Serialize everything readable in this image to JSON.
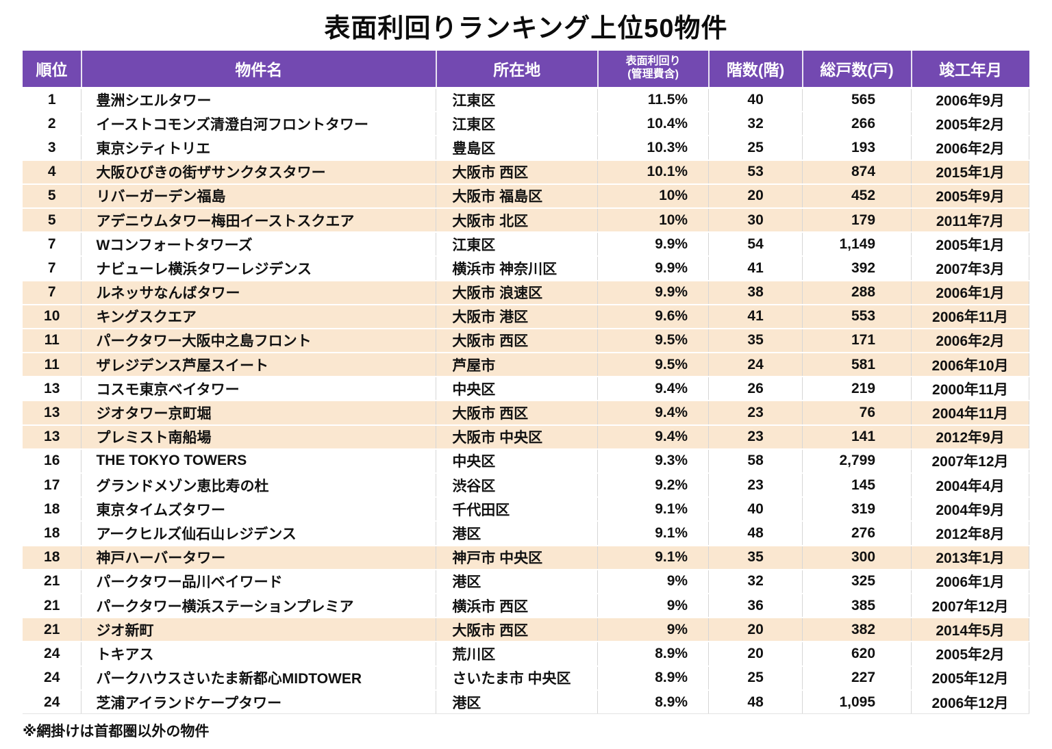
{
  "title": "表面利回りランキング上位50物件",
  "note": "※網掛けは首都圏以外の物件",
  "colors": {
    "header_bg": "#7349B1",
    "header_text": "#FFFFFF",
    "shaded_row_bg": "#FAE7D0",
    "grid_line": "#D6D6D6",
    "body_text": "#111111"
  },
  "table": {
    "headers": {
      "rank": "順位",
      "name": "物件名",
      "location": "所在地",
      "yield_line1": "表面利回り",
      "yield_line2": "(管理費含)",
      "floors": "階数(階)",
      "units": "総戸数(戸)",
      "completed": "竣工年月"
    },
    "rows": [
      {
        "rank": "1",
        "name": "豊洲シエルタワー",
        "location": "江東区",
        "yield": "11.5%",
        "floors": "40",
        "units": "565",
        "completed": "2006年9月",
        "shaded": false
      },
      {
        "rank": "2",
        "name": "イーストコモンズ清澄白河フロントタワー",
        "location": "江東区",
        "yield": "10.4%",
        "floors": "32",
        "units": "266",
        "completed": "2005年2月",
        "shaded": false
      },
      {
        "rank": "3",
        "name": "東京シティトリエ",
        "location": "豊島区",
        "yield": "10.3%",
        "floors": "25",
        "units": "193",
        "completed": "2006年2月",
        "shaded": false
      },
      {
        "rank": "4",
        "name": "大阪ひびきの街ザサンクタスタワー",
        "location": "大阪市 西区",
        "yield": "10.1%",
        "floors": "53",
        "units": "874",
        "completed": "2015年1月",
        "shaded": true
      },
      {
        "rank": "5",
        "name": "リバーガーデン福島",
        "location": "大阪市 福島区",
        "yield": "10%",
        "floors": "20",
        "units": "452",
        "completed": "2005年9月",
        "shaded": true
      },
      {
        "rank": "5",
        "name": "アデニウムタワー梅田イーストスクエア",
        "location": "大阪市 北区",
        "yield": "10%",
        "floors": "30",
        "units": "179",
        "completed": "2011年7月",
        "shaded": true
      },
      {
        "rank": "7",
        "name": "Wコンフォートタワーズ",
        "location": "江東区",
        "yield": "9.9%",
        "floors": "54",
        "units": "1,149",
        "completed": "2005年1月",
        "shaded": false
      },
      {
        "rank": "7",
        "name": "ナビューレ横浜タワーレジデンス",
        "location": "横浜市 神奈川区",
        "yield": "9.9%",
        "floors": "41",
        "units": "392",
        "completed": "2007年3月",
        "shaded": false
      },
      {
        "rank": "7",
        "name": "ルネッサなんばタワー",
        "location": "大阪市 浪速区",
        "yield": "9.9%",
        "floors": "38",
        "units": "288",
        "completed": "2006年1月",
        "shaded": true
      },
      {
        "rank": "10",
        "name": "キングスクエア",
        "location": "大阪市 港区",
        "yield": "9.6%",
        "floors": "41",
        "units": "553",
        "completed": "2006年11月",
        "shaded": true
      },
      {
        "rank": "11",
        "name": "パークタワー大阪中之島フロント",
        "location": "大阪市 西区",
        "yield": "9.5%",
        "floors": "35",
        "units": "171",
        "completed": "2006年2月",
        "shaded": true
      },
      {
        "rank": "11",
        "name": "ザレジデンス芦屋スイート",
        "location": "芦屋市",
        "yield": "9.5%",
        "floors": "24",
        "units": "581",
        "completed": "2006年10月",
        "shaded": true
      },
      {
        "rank": "13",
        "name": "コスモ東京ベイタワー",
        "location": "中央区",
        "yield": "9.4%",
        "floors": "26",
        "units": "219",
        "completed": "2000年11月",
        "shaded": false
      },
      {
        "rank": "13",
        "name": "ジオタワー京町堀",
        "location": "大阪市 西区",
        "yield": "9.4%",
        "floors": "23",
        "units": "76",
        "completed": "2004年11月",
        "shaded": true
      },
      {
        "rank": "13",
        "name": "プレミスト南船場",
        "location": "大阪市 中央区",
        "yield": "9.4%",
        "floors": "23",
        "units": "141",
        "completed": "2012年9月",
        "shaded": true
      },
      {
        "rank": "16",
        "name": "THE TOKYO TOWERS",
        "location": "中央区",
        "yield": "9.3%",
        "floors": "58",
        "units": "2,799",
        "completed": "2007年12月",
        "shaded": false
      },
      {
        "rank": "17",
        "name": "グランドメゾン恵比寿の杜",
        "location": "渋谷区",
        "yield": "9.2%",
        "floors": "23",
        "units": "145",
        "completed": "2004年4月",
        "shaded": false
      },
      {
        "rank": "18",
        "name": "東京タイムズタワー",
        "location": "千代田区",
        "yield": "9.1%",
        "floors": "40",
        "units": "319",
        "completed": "2004年9月",
        "shaded": false
      },
      {
        "rank": "18",
        "name": "アークヒルズ仙石山レジデンス",
        "location": "港区",
        "yield": "9.1%",
        "floors": "48",
        "units": "276",
        "completed": "2012年8月",
        "shaded": false
      },
      {
        "rank": "18",
        "name": "神戸ハーバータワー",
        "location": "神戸市 中央区",
        "yield": "9.1%",
        "floors": "35",
        "units": "300",
        "completed": "2013年1月",
        "shaded": true
      },
      {
        "rank": "21",
        "name": "パークタワー品川ベイワード",
        "location": "港区",
        "yield": "9%",
        "floors": "32",
        "units": "325",
        "completed": "2006年1月",
        "shaded": false
      },
      {
        "rank": "21",
        "name": "パークタワー横浜ステーションプレミア",
        "location": "横浜市 西区",
        "yield": "9%",
        "floors": "36",
        "units": "385",
        "completed": "2007年12月",
        "shaded": false
      },
      {
        "rank": "21",
        "name": "ジオ新町",
        "location": "大阪市 西区",
        "yield": "9%",
        "floors": "20",
        "units": "382",
        "completed": "2014年5月",
        "shaded": true
      },
      {
        "rank": "24",
        "name": "トキアス",
        "location": "荒川区",
        "yield": "8.9%",
        "floors": "20",
        "units": "620",
        "completed": "2005年2月",
        "shaded": false
      },
      {
        "rank": "24",
        "name": "パークハウスさいたま新都心MIDTOWER",
        "location": "さいたま市 中央区",
        "yield": "8.9%",
        "floors": "25",
        "units": "227",
        "completed": "2005年12月",
        "shaded": false
      },
      {
        "rank": "24",
        "name": "芝浦アイランドケープタワー",
        "location": "港区",
        "yield": "8.9%",
        "floors": "48",
        "units": "1,095",
        "completed": "2006年12月",
        "shaded": false
      }
    ]
  },
  "chart_data": {
    "type": "table",
    "title": "表面利回りランキング上位50物件",
    "columns": [
      "順位",
      "物件名",
      "所在地",
      "表面利回り(管理費含)",
      "階数(階)",
      "総戸数(戸)",
      "竣工年月"
    ],
    "rows": [
      [
        "1",
        "豊洲シエルタワー",
        "江東区",
        "11.5%",
        40,
        565,
        "2006年9月"
      ],
      [
        "2",
        "イーストコモンズ清澄白河フロントタワー",
        "江東区",
        "10.4%",
        32,
        266,
        "2005年2月"
      ],
      [
        "3",
        "東京シティトリエ",
        "豊島区",
        "10.3%",
        25,
        193,
        "2006年2月"
      ],
      [
        "4",
        "大阪ひびきの街ザサンクタスタワー",
        "大阪市 西区",
        "10.1%",
        53,
        874,
        "2015年1月"
      ],
      [
        "5",
        "リバーガーデン福島",
        "大阪市 福島区",
        "10%",
        20,
        452,
        "2005年9月"
      ],
      [
        "5",
        "アデニウムタワー梅田イーストスクエア",
        "大阪市 北区",
        "10%",
        30,
        179,
        "2011年7月"
      ],
      [
        "7",
        "Wコンフォートタワーズ",
        "江東区",
        "9.9%",
        54,
        1149,
        "2005年1月"
      ],
      [
        "7",
        "ナビューレ横浜タワーレジデンス",
        "横浜市 神奈川区",
        "9.9%",
        41,
        392,
        "2007年3月"
      ],
      [
        "7",
        "ルネッサなんばタワー",
        "大阪市 浪速区",
        "9.9%",
        38,
        288,
        "2006年1月"
      ],
      [
        "10",
        "キングスクエア",
        "大阪市 港区",
        "9.6%",
        41,
        553,
        "2006年11月"
      ],
      [
        "11",
        "パークタワー大阪中之島フロント",
        "大阪市 西区",
        "9.5%",
        35,
        171,
        "2006年2月"
      ],
      [
        "11",
        "ザレジデンス芦屋スイート",
        "芦屋市",
        "9.5%",
        24,
        581,
        "2006年10月"
      ],
      [
        "13",
        "コスモ東京ベイタワー",
        "中央区",
        "9.4%",
        26,
        219,
        "2000年11月"
      ],
      [
        "13",
        "ジオタワー京町堀",
        "大阪市 西区",
        "9.4%",
        23,
        76,
        "2004年11月"
      ],
      [
        "13",
        "プレミスト南船場",
        "大阪市 中央区",
        "9.4%",
        23,
        141,
        "2012年9月"
      ],
      [
        "16",
        "THE TOKYO TOWERS",
        "中央区",
        "9.3%",
        58,
        2799,
        "2007年12月"
      ],
      [
        "17",
        "グランドメゾン恵比寿の杜",
        "渋谷区",
        "9.2%",
        23,
        145,
        "2004年4月"
      ],
      [
        "18",
        "東京タイムズタワー",
        "千代田区",
        "9.1%",
        40,
        319,
        "2004年9月"
      ],
      [
        "18",
        "アークヒルズ仙石山レジデンス",
        "港区",
        "9.1%",
        48,
        276,
        "2012年8月"
      ],
      [
        "18",
        "神戸ハーバータワー",
        "神戸市 中央区",
        "9.1%",
        35,
        300,
        "2013年1月"
      ],
      [
        "21",
        "パークタワー品川ベイワード",
        "港区",
        "9%",
        32,
        325,
        "2006年1月"
      ],
      [
        "21",
        "パークタワー横浜ステーションプレミア",
        "横浜市 西区",
        "9%",
        36,
        385,
        "2007年12月"
      ],
      [
        "21",
        "ジオ新町",
        "大阪市 西区",
        "9%",
        20,
        382,
        "2014年5月"
      ],
      [
        "24",
        "トキアス",
        "荒川区",
        "8.9%",
        20,
        620,
        "2005年2月"
      ],
      [
        "24",
        "パークハウスさいたま新都心MIDTOWER",
        "さいたま市 中央区",
        "8.9%",
        25,
        227,
        "2005年12月"
      ],
      [
        "24",
        "芝浦アイランドケープタワー",
        "港区",
        "8.9%",
        48,
        1095,
        "2006年12月"
      ]
    ],
    "legend_note": "網掛け(シャドウ行)=首都圏以外の物件",
    "shaded_row_indices": [
      3,
      4,
      5,
      8,
      9,
      10,
      11,
      13,
      14,
      19,
      22
    ]
  }
}
